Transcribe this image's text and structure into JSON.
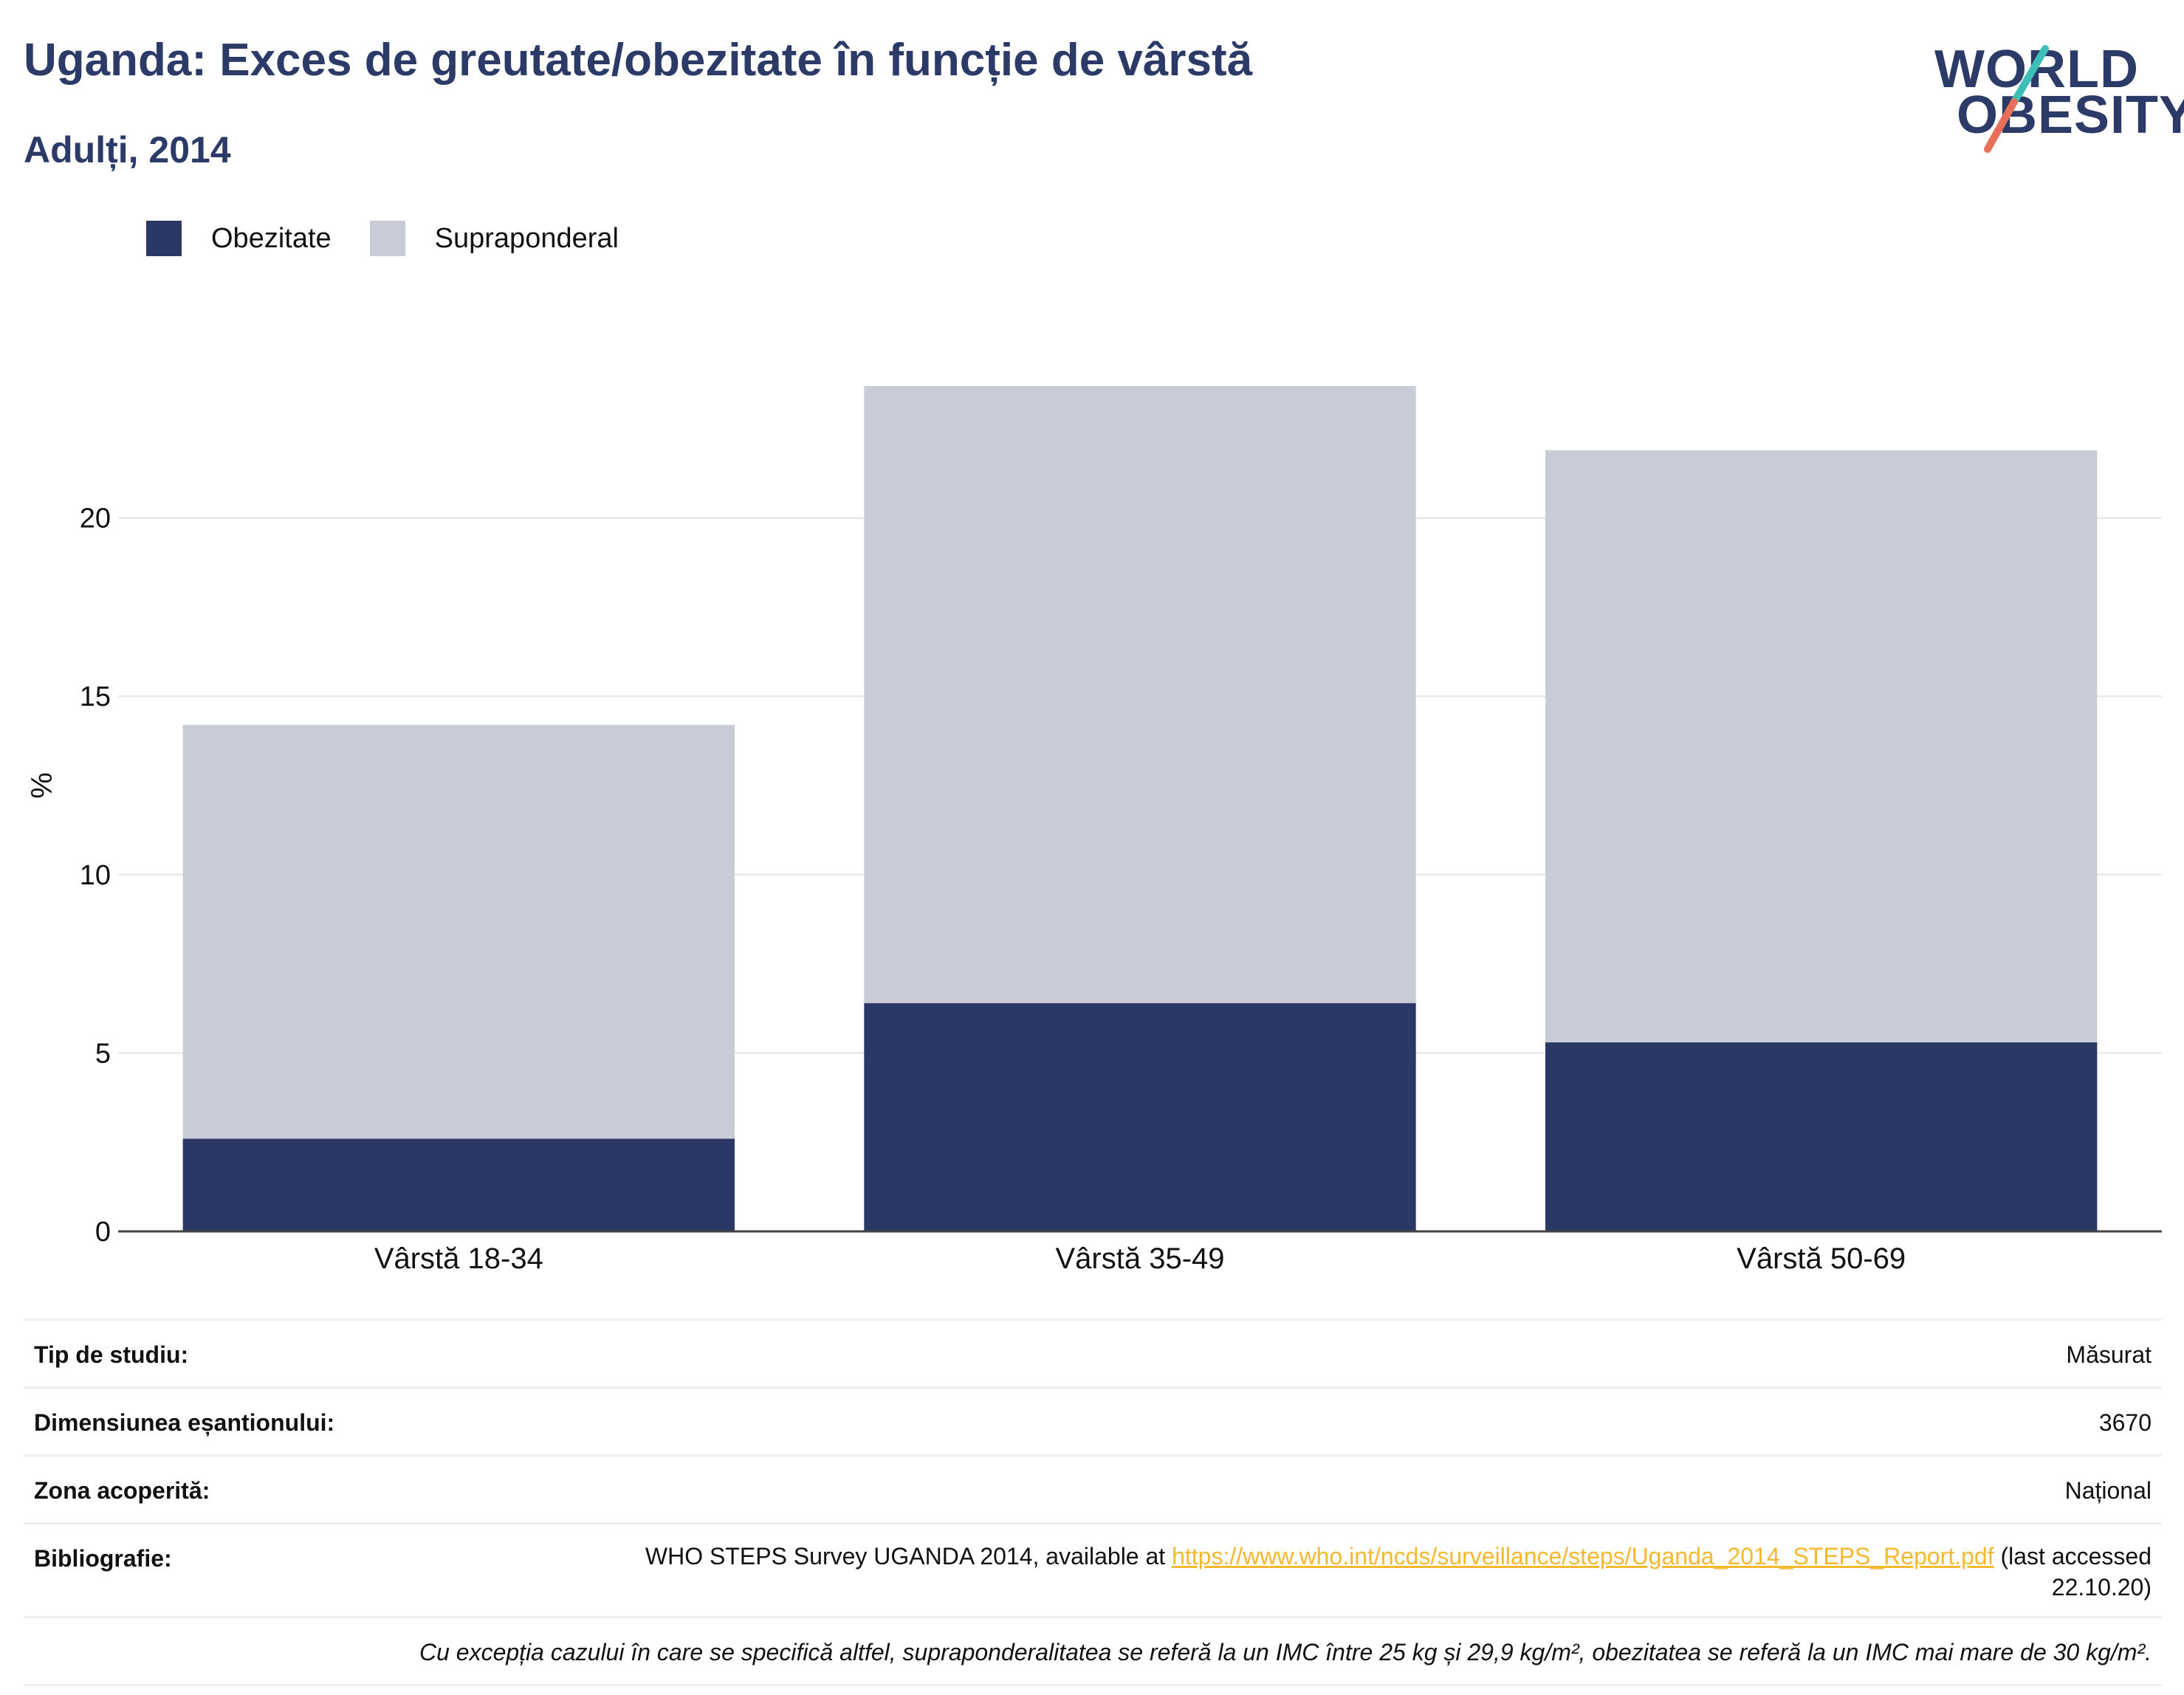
{
  "header": {
    "title": "Uganda: Exces de greutate/obezitate în funcție de vârstă",
    "subtitle": "Adulți, 2014"
  },
  "logo": {
    "line1": "WORLD",
    "line2": "OBESITY",
    "text_color": "#2b3a67",
    "slash_colors": [
      "#3dbfb8",
      "#e8705a"
    ]
  },
  "legend": {
    "items": [
      {
        "label": "Obezitate",
        "color": "#2b3765"
      },
      {
        "label": "Supraponderal",
        "color": "#c9cbd7"
      }
    ]
  },
  "chart_data": {
    "type": "bar",
    "stacked": true,
    "categories": [
      "Vârstă 18-34",
      "Vârstă 35-49",
      "Vârstă 50-69"
    ],
    "series": [
      {
        "name": "Obezitate",
        "values": [
          2.6,
          6.4,
          5.3
        ],
        "color": "#2b3765"
      },
      {
        "name": "Supraponderal",
        "values": [
          11.6,
          17.3,
          16.6
        ],
        "color": "#c9cbd7"
      }
    ],
    "ylabel": "%",
    "ylim": [
      0,
      25
    ],
    "yticks": [
      0,
      5,
      10,
      15,
      20
    ],
    "grid": true
  },
  "info": {
    "rows": [
      {
        "label": "Tip de studiu:",
        "value": "Măsurat"
      },
      {
        "label": "Dimensiunea eșantionului:",
        "value": "3670"
      },
      {
        "label": "Zona acoperită:",
        "value": "Național"
      }
    ],
    "bibliography": {
      "label": "Bibliografie:",
      "text_before": "WHO STEPS Survey UGANDA 2014, available at ",
      "link": "https://www.who.int/ncds/surveillance/steps/Uganda_2014_STEPS_Report.pdf",
      "text_after": " (last accessed 22.10.20)"
    },
    "note": "Cu excepția cazului în care se specifică altfel, supraponderalitatea se referă la un IMC între 25 kg și 29,9 kg/m², obezitatea se referă la un IMC mai mare de 30 kg/m²."
  }
}
